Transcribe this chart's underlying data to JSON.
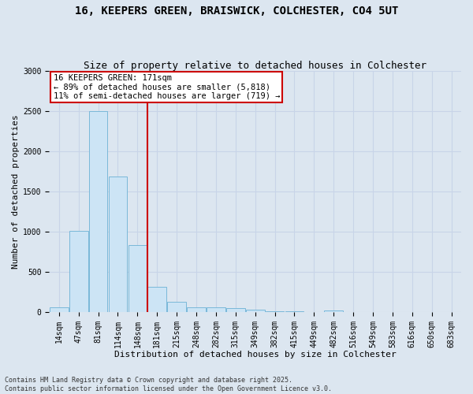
{
  "title_line1": "16, KEEPERS GREEN, BRAISWICK, COLCHESTER, CO4 5UT",
  "title_line2": "Size of property relative to detached houses in Colchester",
  "xlabel": "Distribution of detached houses by size in Colchester",
  "ylabel": "Number of detached properties",
  "categories": [
    "14sqm",
    "47sqm",
    "81sqm",
    "114sqm",
    "148sqm",
    "181sqm",
    "215sqm",
    "248sqm",
    "282sqm",
    "315sqm",
    "349sqm",
    "382sqm",
    "415sqm",
    "449sqm",
    "482sqm",
    "516sqm",
    "549sqm",
    "583sqm",
    "616sqm",
    "650sqm",
    "683sqm"
  ],
  "values": [
    55,
    1010,
    2500,
    1680,
    830,
    310,
    130,
    60,
    55,
    45,
    25,
    10,
    5,
    0,
    20,
    0,
    0,
    0,
    0,
    0,
    0
  ],
  "bar_color": "#cce4f5",
  "bar_edge_color": "#7ab8d9",
  "vline_color": "#cc0000",
  "vline_x_index": 4,
  "annotation_text": "16 KEEPERS GREEN: 171sqm\n← 89% of detached houses are smaller (5,818)\n11% of semi-detached houses are larger (719) →",
  "annotation_box_color": "#cc0000",
  "ylim": [
    0,
    3000
  ],
  "yticks": [
    0,
    500,
    1000,
    1500,
    2000,
    2500,
    3000
  ],
  "grid_color": "#c8d4e8",
  "background_color": "#dce6f0",
  "fig_background_color": "#dce6f0",
  "footnote_line1": "Contains HM Land Registry data © Crown copyright and database right 2025.",
  "footnote_line2": "Contains public sector information licensed under the Open Government Licence v3.0.",
  "title_fontsize": 10,
  "subtitle_fontsize": 9,
  "axis_label_fontsize": 8,
  "tick_fontsize": 7,
  "annotation_fontsize": 7.5,
  "footnote_fontsize": 6
}
